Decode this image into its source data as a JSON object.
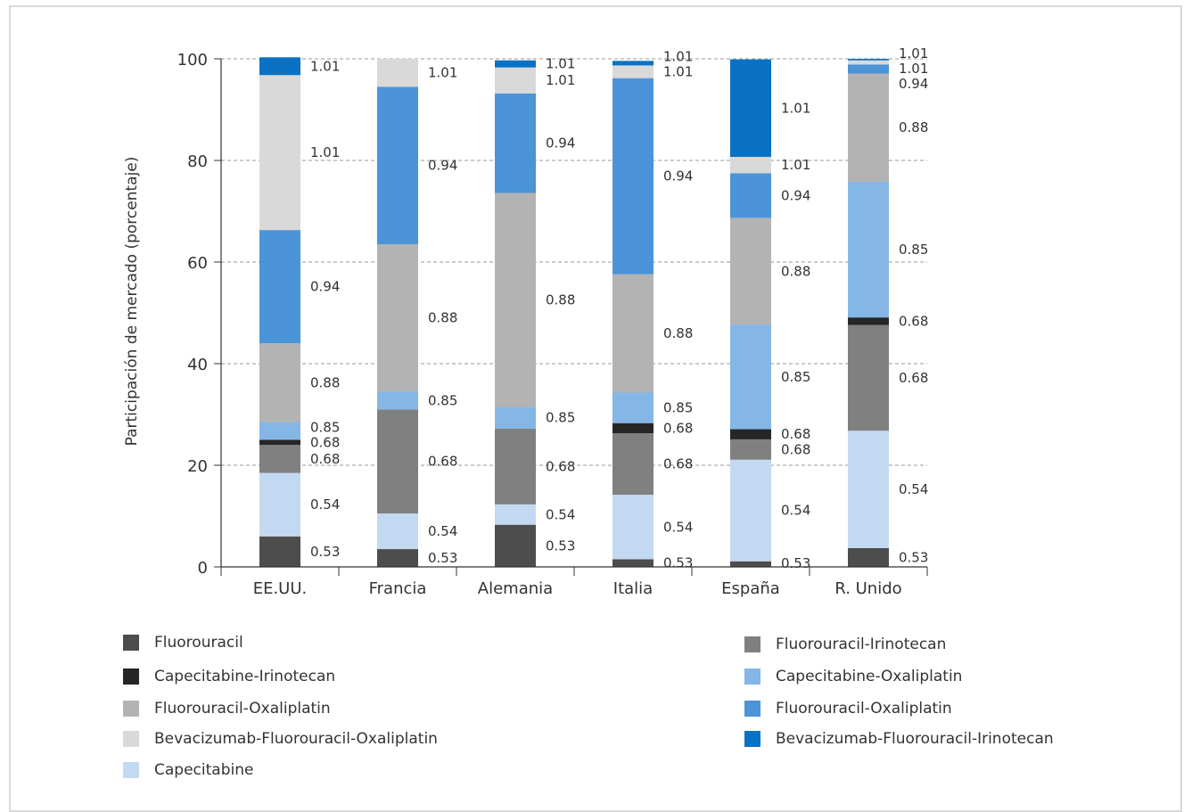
{
  "chart_data": {
    "type": "bar",
    "stacked": true,
    "title": "",
    "xlabel": "",
    "ylabel": "Participación de mercado (porcentaje)",
    "ylim": [
      0,
      100
    ],
    "yticks": [
      "0",
      "20",
      "40",
      "60",
      "80",
      "100"
    ],
    "grid": "horizontal-dashed",
    "legend_placement": "bottom",
    "categories": [
      "EE.UU.",
      "Francia",
      "Alemania",
      "Italia",
      "España",
      "R. Unido"
    ],
    "series": [
      {
        "name": "Fluorouracil",
        "color": "#4d4d4d",
        "values": [
          6,
          3.5,
          8.3,
          1.5,
          1.1,
          3.7
        ],
        "labels": [
          "0.53",
          "0.53",
          "0.53",
          "0.53",
          "0.53",
          "0.53"
        ]
      },
      {
        "name": "Capecitabine",
        "color": "#c3d9f2",
        "values": [
          12.5,
          7,
          4,
          12.7,
          20,
          23.1
        ],
        "labels": [
          "0.54",
          "0.54",
          "0.54",
          "0.54",
          "0.54",
          "0.54"
        ]
      },
      {
        "name": "Fluorouracil-Irinotecan",
        "color": "#808080",
        "values": [
          5.5,
          20.5,
          14.9,
          12.1,
          4,
          20.8
        ],
        "labels": [
          "0.68",
          "0.68",
          "0.68",
          "0.68",
          "0.68",
          "0.68"
        ]
      },
      {
        "name": "Capecitabine-Irinotecan",
        "color": "#262626",
        "values": [
          1,
          0,
          0,
          2,
          2,
          1.5
        ],
        "labels": [
          "0.68",
          "",
          "",
          "0.68",
          "0.68",
          "0.68"
        ]
      },
      {
        "name": "Capecitabine-Oxaliplatin",
        "color": "#84b6e6",
        "values": [
          3.5,
          3.5,
          4.3,
          6,
          20.6,
          26.7
        ],
        "labels": [
          "0.85",
          "0.85",
          "0.85",
          "0.85",
          "0.85",
          "0.85"
        ]
      },
      {
        "name": "Fluorouracil-Oxaliplatin",
        "color": "#b3b3b3",
        "values": [
          15.5,
          29,
          42.1,
          23.3,
          21,
          21.3
        ],
        "labels": [
          "0.88",
          "0.88",
          "0.88",
          "0.88",
          "0.88",
          "0.88"
        ]
      },
      {
        "name": "Fluorouracil-Oxaliplatin",
        "color": "#4a94d7",
        "values": [
          22.3,
          31,
          19.6,
          38.6,
          8.8,
          1.8
        ],
        "labels": [
          "0.94",
          "0.94",
          "0.94",
          "0.94",
          "0.94",
          "0.94"
        ]
      },
      {
        "name": "Bevacizumab-Fluorouracil-Oxaliplatin",
        "color": "#d9d9d9",
        "values": [
          30.5,
          5.5,
          5.1,
          2.5,
          3.2,
          0.8
        ],
        "labels": [
          "1.01",
          "1.01",
          "1.01",
          "1.01",
          "1.01",
          "1.01"
        ]
      },
      {
        "name": "Bevacizumab-Fluorouracil-Irinotecan",
        "color": "#0a72c4",
        "values": [
          3.5,
          0,
          1.4,
          0.9,
          19.2,
          0.3
        ],
        "labels": [
          "1.01",
          "",
          "1.01",
          "1.01",
          "1.01",
          "1.01"
        ]
      }
    ]
  },
  "legend": {
    "left": [
      {
        "label": "Fluorouracil",
        "color": "#4d4d4d"
      },
      {
        "label": "Capecitabine-Irinotecan",
        "color": "#262626"
      },
      {
        "label": "Fluorouracil-Oxaliplatin",
        "color": "#b3b3b3"
      },
      {
        "label": "Bevacizumab-Fluorouracil-Oxaliplatin",
        "color": "#d9d9d9"
      },
      {
        "label": "Capecitabine",
        "color": "#c3d9f2"
      }
    ],
    "right": [
      {
        "label": "Fluorouracil-Irinotecan",
        "color": "#808080"
      },
      {
        "label": "Capecitabine-Oxaliplatin",
        "color": "#84b6e6"
      },
      {
        "label": "Fluorouracil-Oxaliplatin",
        "color": "#4a94d7"
      },
      {
        "label": "Bevacizumab-Fluorouracil-Irinotecan",
        "color": "#0a72c4"
      }
    ]
  }
}
